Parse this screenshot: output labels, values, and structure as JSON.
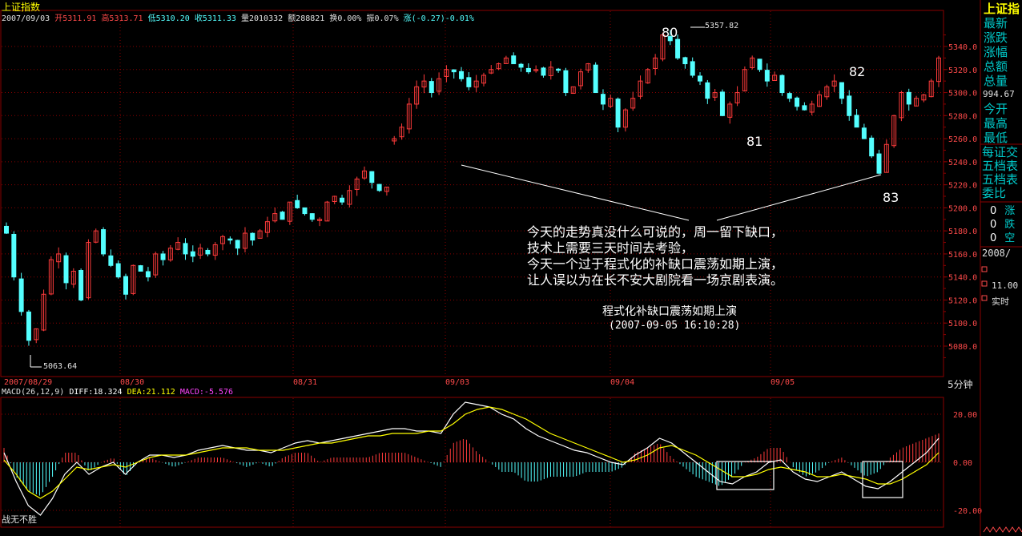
{
  "header": {
    "title": "上证指数",
    "date": "2007/09/03",
    "open": "开5311.91",
    "high": "高5313.71",
    "low": "低5310.20",
    "close": "收5311.33",
    "volume": "量2010332",
    "amount": "额288821",
    "turnover": "换0.00%",
    "amplitude": "振0.07%",
    "change": "涨(-0.27)-0.01%"
  },
  "right_panel": {
    "title": "上证指",
    "labels_a": [
      "最新",
      "涨跌",
      "涨幅",
      "总额",
      "总量"
    ],
    "value": "994.67",
    "labels_b": [
      "今开",
      "最高",
      "最低"
    ],
    "labels_c": [
      "每证交",
      "五档表",
      "五档表",
      "委比"
    ],
    "rows": [
      [
        "0",
        "涨"
      ],
      [
        "0",
        "跌"
      ],
      [
        "0",
        "空"
      ]
    ],
    "date": "2008/",
    "time": "11.00",
    "mode": "实时"
  },
  "price_axis": {
    "ticks": [
      "5340.0",
      "5320.0",
      "5300.0",
      "5280.0",
      "5260.0",
      "5240.0",
      "5220.0",
      "5200.0",
      "5180.0",
      "5160.0",
      "5140.0",
      "5120.0",
      "5100.0",
      "5080.0"
    ],
    "period": "5分钟"
  },
  "time_axis": [
    "2007/08/29",
    "08/30",
    "08/31",
    "09/03",
    "09/04",
    "09/05"
  ],
  "annotations": {
    "peak_value": "5357.82",
    "low_value": "5063.64",
    "labels": [
      "80",
      "81",
      "82",
      "83"
    ],
    "comment": [
      "今天的走势真没什么可说的，周一留下缺口，",
      "技术上需要三天时间去考验，",
      "今天一个过于程式化的补缺口震荡如期上演，",
      "让人误以为在长不安大剧院看一场京剧表演。"
    ],
    "caption": "程式化补缺口震荡如期上演",
    "caption_time": "(2007-09-05 16:10:28)",
    "watermark": "战无不胜"
  },
  "macd": {
    "label": "MACD(26,12,9)",
    "diff": "DIFF:18.324",
    "dea": "DEA:21.112",
    "macd": "MACD:-5.576",
    "ticks": [
      "20.00",
      "0.00",
      "-20.00"
    ]
  },
  "colors": {
    "up": "#ff3b3b",
    "down": "#54ffff",
    "grid": "#8a0000",
    "axis_text": "#ff4a4a",
    "panel_text": "#00c8c8",
    "title_yellow": "#ffff00"
  },
  "chart_data": {
    "type": "candlestick",
    "price_range": [
      5060,
      5362
    ],
    "macd_range": [
      -24,
      26
    ],
    "key_points": {
      "peak": 5357.82,
      "trough": 5063.64
    },
    "candles_close_path": [
      5178,
      5140,
      5110,
      5085,
      5095,
      5125,
      5155,
      5160,
      5135,
      5145,
      5120,
      5170,
      5180,
      5160,
      5150,
      5140,
      5125,
      5150,
      5145,
      5140,
      5160,
      5155,
      5165,
      5170,
      5160,
      5158,
      5165,
      5160,
      5168,
      5175,
      5172,
      5165,
      5178,
      5172,
      5180,
      5188,
      5195,
      5190,
      5205,
      5200,
      5195,
      5190,
      5190,
      5205,
      5210,
      5205,
      5215,
      5225,
      5232,
      5222,
      5215,
      5218,
      5260,
      5270,
      5290,
      5305,
      5310,
      5300,
      5312,
      5320,
      5318,
      5312,
      5305,
      5310,
      5315,
      5320,
      5325,
      5330,
      5325,
      5322,
      5318,
      5320,
      5315,
      5322,
      5320,
      5300,
      5305,
      5318,
      5325,
      5300,
      5290,
      5295,
      5270,
      5285,
      5295,
      5310,
      5320,
      5330,
      5350,
      5345,
      5330,
      5325,
      5315,
      5310,
      5295,
      5300,
      5280,
      5290,
      5300,
      5320,
      5330,
      5320,
      5310,
      5315,
      5300,
      5295,
      5288,
      5285,
      5290,
      5298,
      5305,
      5310,
      5295,
      5280,
      5270,
      5260,
      5245,
      5230,
      5255,
      5280,
      5300,
      5290,
      5295,
      5298,
      5310,
      5330
    ],
    "diff_path": [
      4,
      -8,
      -18,
      -22,
      -15,
      -5,
      0,
      -5,
      -2,
      0,
      -5,
      0,
      3,
      3,
      2,
      3,
      5,
      6,
      7,
      6,
      5,
      5,
      4,
      6,
      8,
      9,
      8,
      9,
      10,
      11,
      12,
      13,
      14,
      14,
      13,
      13,
      12,
      20,
      25,
      24,
      23,
      20,
      18,
      14,
      11,
      9,
      7,
      5,
      4,
      2,
      0,
      -1,
      3,
      6,
      10,
      8,
      4,
      0,
      -4,
      -8,
      -9,
      -6,
      -4,
      0,
      1,
      -4,
      -7,
      -8,
      -6,
      -4,
      -7,
      -10,
      -11,
      -8,
      -4,
      0,
      4,
      10
    ],
    "dea_path": [
      1,
      -5,
      -12,
      -15,
      -12,
      -7,
      -2,
      -3,
      -2,
      -1,
      -2,
      0,
      2,
      3,
      3,
      3,
      4,
      5,
      6,
      6,
      6,
      5,
      5,
      5,
      6,
      7,
      8,
      8,
      9,
      10,
      11,
      11,
      12,
      12,
      12,
      13,
      13,
      16,
      20,
      22,
      23,
      22,
      20,
      18,
      15,
      12,
      10,
      8,
      6,
      4,
      2,
      0,
      1,
      3,
      6,
      7,
      5,
      3,
      0,
      -3,
      -6,
      -6,
      -5,
      -3,
      -2,
      -3,
      -4,
      -6,
      -6,
      -5,
      -6,
      -7,
      -9,
      -9,
      -7,
      -4,
      -1,
      4
    ]
  }
}
